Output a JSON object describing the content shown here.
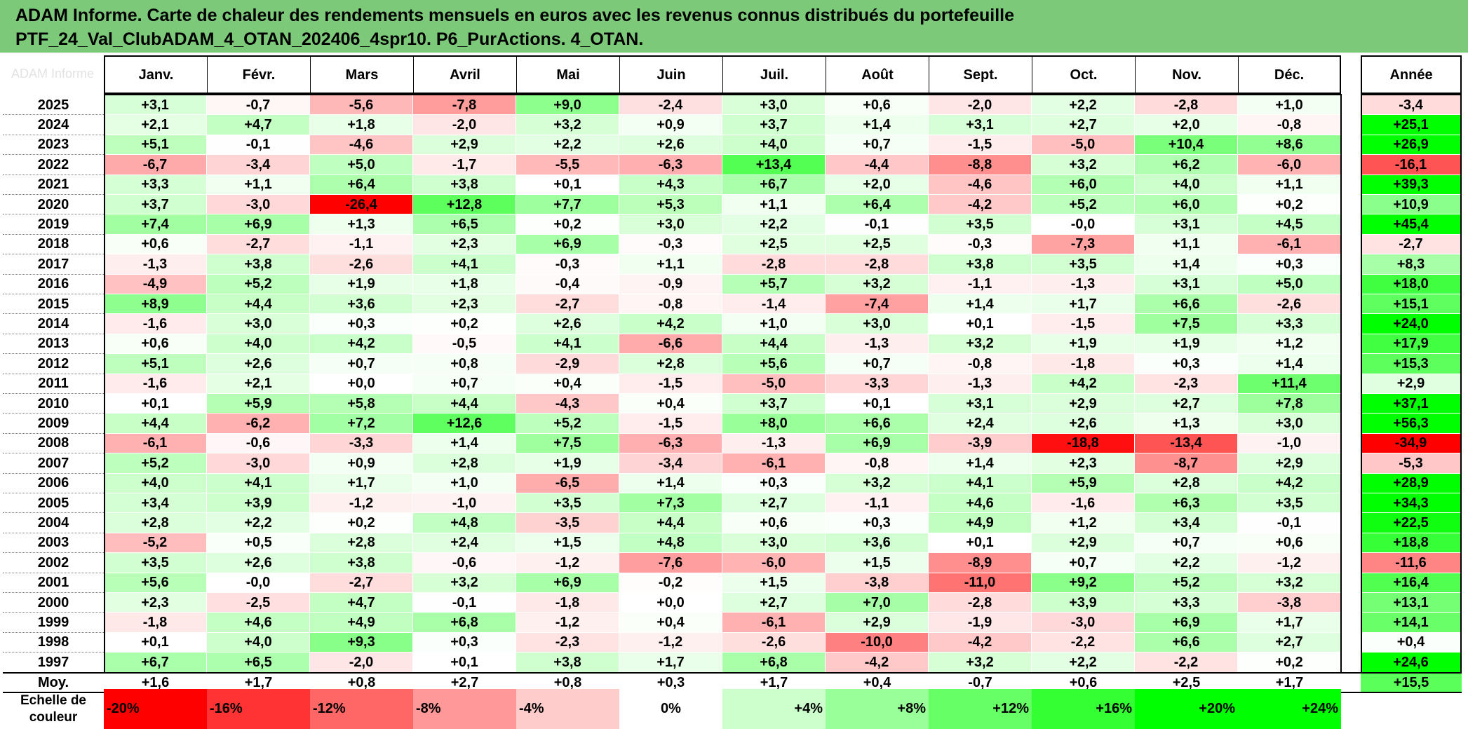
{
  "title_lines": [
    "ADAM Informe. Carte de chaleur des rendements mensuels en euros avec les revenus connus distribués du portefeuille",
    "PTF_24_Val_ClubADAM_4_OTAN_202406_4spr10. P6_PurActions. 4_OTAN."
  ],
  "watermark": "ADAM Informe",
  "colors": {
    "title_bg": "#7cc97a",
    "negative_max": "#ff0000",
    "positive_max": "#00ff00",
    "neutral": "#ffffff"
  },
  "chart_data": {
    "type": "heatmap",
    "title": "ADAM Informe. Carte de chaleur des rendements mensuels en euros avec les revenus connus distribués du portefeuille PTF_24_Val_ClubADAM_4_OTAN_202406_4spr10. P6_PurActions. 4_OTAN.",
    "columns": [
      "Janv.",
      "Févr.",
      "Mars",
      "Avril",
      "Mai",
      "Juin",
      "Juil.",
      "Août",
      "Sept.",
      "Oct.",
      "Nov.",
      "Déc."
    ],
    "annual_column": "Année",
    "rows": [
      {
        "year": "2025",
        "values": [
          "+3,1",
          "-0,7",
          "-5,6",
          "-7,8",
          "+9,0",
          "-2,4",
          "+3,0",
          "+0,6",
          "-2,0",
          "+2,2",
          "-2,8",
          "+1,0"
        ],
        "annual": "-3,4"
      },
      {
        "year": "2024",
        "values": [
          "+2,1",
          "+4,7",
          "+1,8",
          "-2,0",
          "+3,2",
          "+0,9",
          "+3,7",
          "+1,4",
          "+3,1",
          "+2,7",
          "+2,0",
          "-0,8"
        ],
        "annual": "+25,1"
      },
      {
        "year": "2023",
        "values": [
          "+5,1",
          "-0,1",
          "-4,6",
          "+2,9",
          "+2,2",
          "+2,6",
          "+4,0",
          "+0,7",
          "-1,5",
          "-5,0",
          "+10,4",
          "+8,6"
        ],
        "annual": "+26,9"
      },
      {
        "year": "2022",
        "values": [
          "-6,7",
          "-3,4",
          "+5,0",
          "-1,7",
          "-5,5",
          "-6,3",
          "+13,4",
          "-4,4",
          "-8,8",
          "+3,2",
          "+6,2",
          "-6,0"
        ],
        "annual": "-16,1"
      },
      {
        "year": "2021",
        "values": [
          "+3,3",
          "+1,1",
          "+6,4",
          "+3,8",
          "+0,1",
          "+4,3",
          "+6,7",
          "+2,0",
          "-4,6",
          "+6,0",
          "+4,0",
          "+1,1"
        ],
        "annual": "+39,3"
      },
      {
        "year": "2020",
        "values": [
          "+3,7",
          "-3,0",
          "-26,4",
          "+12,8",
          "+7,7",
          "+5,3",
          "+1,1",
          "+6,4",
          "-4,2",
          "+5,2",
          "+6,0",
          "+0,2"
        ],
        "annual": "+10,9"
      },
      {
        "year": "2019",
        "values": [
          "+7,4",
          "+6,9",
          "+1,3",
          "+6,5",
          "+0,2",
          "+3,0",
          "+2,2",
          "-0,1",
          "+3,5",
          "-0,0",
          "+3,1",
          "+4,5"
        ],
        "annual": "+45,4"
      },
      {
        "year": "2018",
        "values": [
          "+0,6",
          "-2,7",
          "-1,1",
          "+2,3",
          "+6,9",
          "-0,3",
          "+2,5",
          "+2,5",
          "-0,3",
          "-7,3",
          "+1,1",
          "-6,1"
        ],
        "annual": "-2,7"
      },
      {
        "year": "2017",
        "values": [
          "-1,3",
          "+3,8",
          "-2,6",
          "+4,1",
          "-0,3",
          "+1,1",
          "-2,8",
          "-2,8",
          "+3,8",
          "+3,5",
          "+1,4",
          "+0,3"
        ],
        "annual": "+8,3"
      },
      {
        "year": "2016",
        "values": [
          "-4,9",
          "+5,2",
          "+1,9",
          "+1,8",
          "-0,4",
          "-0,9",
          "+5,7",
          "+3,2",
          "-1,1",
          "-1,3",
          "+3,1",
          "+5,0"
        ],
        "annual": "+18,0"
      },
      {
        "year": "2015",
        "values": [
          "+8,9",
          "+4,4",
          "+3,6",
          "+2,3",
          "-2,7",
          "-0,8",
          "-1,4",
          "-7,4",
          "+1,4",
          "+1,7",
          "+6,6",
          "-2,6"
        ],
        "annual": "+15,1"
      },
      {
        "year": "2014",
        "values": [
          "-1,6",
          "+3,0",
          "+0,3",
          "+0,2",
          "+2,6",
          "+4,2",
          "+1,0",
          "+3,0",
          "+0,1",
          "-1,5",
          "+7,5",
          "+3,3"
        ],
        "annual": "+24,0"
      },
      {
        "year": "2013",
        "values": [
          "+0,6",
          "+4,0",
          "+4,2",
          "-0,5",
          "+4,1",
          "-6,6",
          "+4,4",
          "-1,3",
          "+3,2",
          "+1,9",
          "+1,9",
          "+1,2"
        ],
        "annual": "+17,9"
      },
      {
        "year": "2012",
        "values": [
          "+5,1",
          "+2,6",
          "+0,7",
          "+0,8",
          "-2,9",
          "+2,8",
          "+5,6",
          "+0,7",
          "-0,8",
          "-1,8",
          "+0,3",
          "+1,4"
        ],
        "annual": "+15,3"
      },
      {
        "year": "2011",
        "values": [
          "-1,6",
          "+2,1",
          "+0,0",
          "+0,7",
          "+0,4",
          "-1,5",
          "-5,0",
          "-3,3",
          "-1,3",
          "+4,2",
          "-2,3",
          "+11,4"
        ],
        "annual": "+2,9"
      },
      {
        "year": "2010",
        "values": [
          "+0,1",
          "+5,9",
          "+5,8",
          "+4,4",
          "-4,3",
          "+0,4",
          "+3,7",
          "+0,1",
          "+3,1",
          "+2,9",
          "+2,7",
          "+7,8"
        ],
        "annual": "+37,1"
      },
      {
        "year": "2009",
        "values": [
          "+4,4",
          "-6,2",
          "+7,2",
          "+12,6",
          "+5,2",
          "-1,5",
          "+8,0",
          "+6,6",
          "+2,4",
          "+2,6",
          "+1,3",
          "+3,0"
        ],
        "annual": "+56,3"
      },
      {
        "year": "2008",
        "values": [
          "-6,1",
          "-0,6",
          "-3,3",
          "+1,4",
          "+7,5",
          "-6,3",
          "-1,3",
          "+6,9",
          "-3,9",
          "-18,8",
          "-13,4",
          "-1,0"
        ],
        "annual": "-34,9"
      },
      {
        "year": "2007",
        "values": [
          "+5,2",
          "-3,0",
          "+0,9",
          "+2,8",
          "+1,9",
          "-3,4",
          "-6,1",
          "-0,8",
          "+1,4",
          "+2,3",
          "-8,7",
          "+2,9"
        ],
        "annual": "-5,3"
      },
      {
        "year": "2006",
        "values": [
          "+4,0",
          "+4,1",
          "+1,7",
          "+1,0",
          "-6,5",
          "+1,4",
          "+0,3",
          "+3,2",
          "+4,1",
          "+5,9",
          "+2,8",
          "+4,2"
        ],
        "annual": "+28,9"
      },
      {
        "year": "2005",
        "values": [
          "+3,4",
          "+3,9",
          "-1,2",
          "-1,0",
          "+3,5",
          "+7,3",
          "+2,7",
          "-1,1",
          "+4,6",
          "-1,6",
          "+6,3",
          "+3,5"
        ],
        "annual": "+34,3"
      },
      {
        "year": "2004",
        "values": [
          "+2,8",
          "+2,2",
          "+0,2",
          "+4,8",
          "-3,5",
          "+4,4",
          "+0,6",
          "+0,3",
          "+4,9",
          "+1,2",
          "+3,4",
          "-0,1"
        ],
        "annual": "+22,5"
      },
      {
        "year": "2003",
        "values": [
          "-5,2",
          "+0,5",
          "+2,8",
          "+2,4",
          "+1,5",
          "+4,8",
          "+3,0",
          "+3,6",
          "+0,1",
          "+2,9",
          "+0,7",
          "+0,6"
        ],
        "annual": "+18,8"
      },
      {
        "year": "2002",
        "values": [
          "+3,5",
          "+2,6",
          "+3,8",
          "-0,6",
          "-1,2",
          "-7,6",
          "-6,0",
          "+1,5",
          "-8,9",
          "+0,7",
          "+2,2",
          "-1,2"
        ],
        "annual": "-11,6"
      },
      {
        "year": "2001",
        "values": [
          "+5,6",
          "-0,0",
          "-2,7",
          "+3,2",
          "+6,9",
          "-0,2",
          "+1,5",
          "-3,8",
          "-11,0",
          "+9,2",
          "+5,2",
          "+3,2"
        ],
        "annual": "+16,4"
      },
      {
        "year": "2000",
        "values": [
          "+2,3",
          "-2,5",
          "+4,7",
          "-0,1",
          "-1,8",
          "+0,0",
          "+2,7",
          "+7,0",
          "-2,8",
          "+3,9",
          "+3,3",
          "-3,8"
        ],
        "annual": "+13,1"
      },
      {
        "year": "1999",
        "values": [
          "-1,8",
          "+4,6",
          "+4,9",
          "+6,8",
          "-1,2",
          "+0,4",
          "-6,1",
          "+2,9",
          "-1,9",
          "-3,0",
          "+6,9",
          "+1,7"
        ],
        "annual": "+14,1"
      },
      {
        "year": "1998",
        "values": [
          "+0,1",
          "+4,0",
          "+9,3",
          "+0,3",
          "-2,3",
          "-1,2",
          "-2,6",
          "-10,0",
          "-4,2",
          "-2,2",
          "+6,6",
          "+2,7"
        ],
        "annual": "+0,4"
      },
      {
        "year": "1997",
        "values": [
          "+6,7",
          "+6,5",
          "-2,0",
          "+0,1",
          "+3,8",
          "+1,7",
          "+6,8",
          "-4,2",
          "+3,2",
          "+2,2",
          "-2,2",
          "+0,2"
        ],
        "annual": "+24,6"
      }
    ],
    "average_row": {
      "label": "Moy.",
      "values": [
        "+1,6",
        "+1,7",
        "+0,8",
        "+2,7",
        "+0,8",
        "+0,3",
        "+1,7",
        "+0,4",
        "-0,7",
        "+0,6",
        "+2,5",
        "+1,7"
      ],
      "annual": "+15,5"
    },
    "scale": {
      "label": "Echelle de couleur",
      "steps": [
        {
          "label": "-20%",
          "value": -20
        },
        {
          "label": "-16%",
          "value": -16
        },
        {
          "label": "-12%",
          "value": -12
        },
        {
          "label": "-8%",
          "value": -8
        },
        {
          "label": "-4%",
          "value": -4
        },
        {
          "label": "0%",
          "value": 0
        },
        {
          "label": "+4%",
          "value": 4
        },
        {
          "label": "+8%",
          "value": 8
        },
        {
          "label": "+12%",
          "value": 12
        },
        {
          "label": "+16%",
          "value": 16
        },
        {
          "label": "+20%",
          "value": 20
        },
        {
          "label": "+24%",
          "value": 24
        }
      ]
    }
  }
}
